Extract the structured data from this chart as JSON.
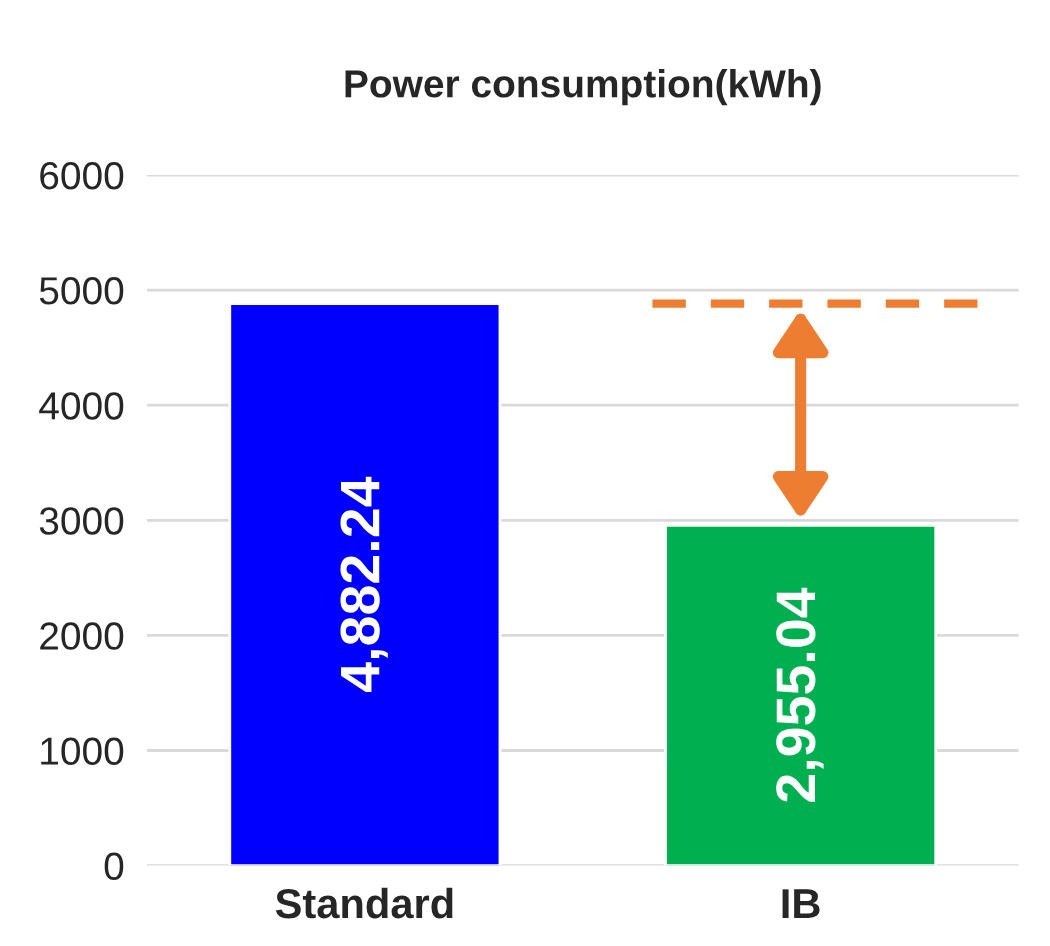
{
  "chart_data": {
    "type": "bar",
    "title": "Power consumption(kWh)",
    "categories": [
      "Standard",
      "IB"
    ],
    "values": [
      4882.24,
      2955.04
    ],
    "colors": [
      "#0000ff",
      "#00b050"
    ],
    "value_labels": [
      "4,882.24",
      "2,955.04"
    ],
    "ylim": [
      0,
      6000
    ],
    "yticks": [
      0,
      1000,
      2000,
      3000,
      4000,
      5000,
      6000
    ],
    "grid": "y",
    "legend": false,
    "ref_lines": [
      {
        "axis": "y",
        "value": 4882.24,
        "color": "#ed7d31",
        "line_style": "dashed"
      }
    ]
  }
}
